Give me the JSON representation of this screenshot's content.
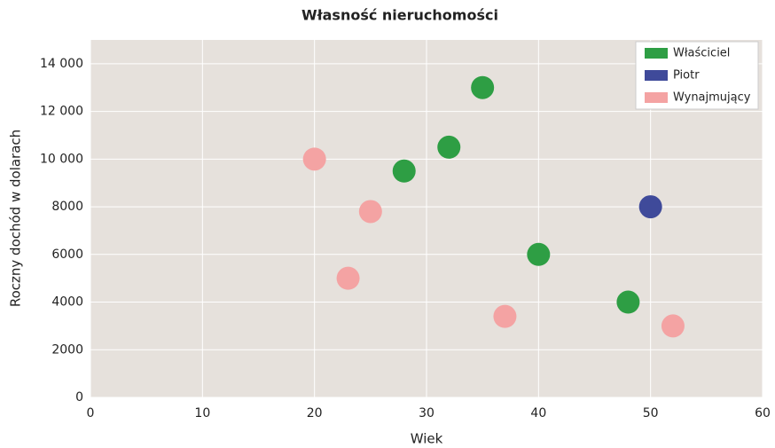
{
  "chart_data": {
    "type": "scatter",
    "title": "Własność nieruchomości",
    "x_label": "Wiek",
    "y_label": "Roczny dochód w dolarach",
    "series": [
      {
        "name": "Właściciel",
        "color": "#2e9e44",
        "x": [
          28,
          32,
          35,
          40,
          48
        ],
        "values": [
          9500,
          10500,
          13000,
          6000,
          4000
        ]
      },
      {
        "name": "Piotr",
        "color": "#3f4a9a",
        "x": [
          50
        ],
        "values": [
          8000
        ]
      },
      {
        "name": "Wynajmujący",
        "color": "#f4a3a3",
        "x": [
          20,
          25,
          23,
          37,
          52
        ],
        "values": [
          10000,
          7800,
          5000,
          3400,
          3000
        ]
      }
    ],
    "xlim": [
      0,
      60
    ],
    "xticks": [
      0,
      10,
      20,
      30,
      40,
      50,
      60
    ],
    "ylim": [
      0,
      15000
    ],
    "yticks": [
      0,
      2000,
      4000,
      6000,
      8000,
      {
        "value": 10000,
        "label": "10 000"
      },
      {
        "value": 12000,
        "label": "12 000"
      },
      {
        "value": 14000,
        "label": "14 000"
      }
    ],
    "grid": true,
    "legend": "top-right"
  }
}
